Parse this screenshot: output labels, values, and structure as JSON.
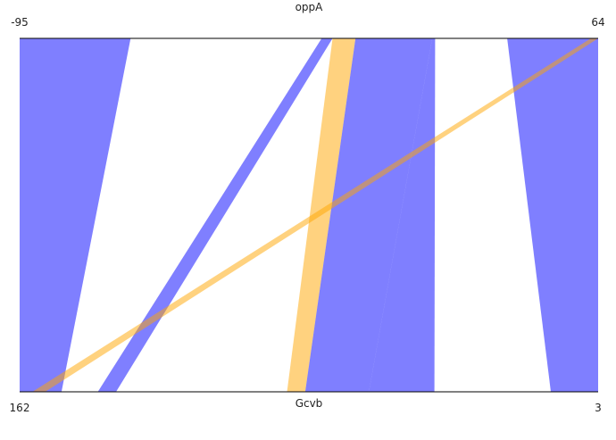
{
  "chart_data": {
    "type": "parallel-band",
    "title": "",
    "top_axis": {
      "label": "oppA",
      "min": -95,
      "max": 64,
      "min_label": "-95",
      "max_label": "64"
    },
    "bottom_axis": {
      "label": "Gcvb",
      "min": 162,
      "max": 3,
      "min_label": "162",
      "max_label": "3"
    },
    "colors": {
      "blue": "#0000ff",
      "orange": "#ffa500"
    },
    "bands": [
      {
        "color": "blue",
        "top": [
          -95,
          -64.5
        ],
        "bottom": [
          162,
          150.5
        ]
      },
      {
        "color": "blue",
        "top": [
          -12,
          -9
        ],
        "bottom": [
          140.5,
          135.5
        ]
      },
      {
        "color": "orange",
        "top": [
          -9,
          -2.7
        ],
        "bottom": [
          88.5,
          83.5
        ]
      },
      {
        "color": "blue",
        "top": [
          -2.7,
          18.4
        ],
        "bottom": [
          83.5,
          66
        ]
      },
      {
        "color": "blue",
        "top": [
          18.4,
          19.2
        ],
        "bottom": [
          66,
          48
        ]
      },
      {
        "color": "blue",
        "top": [
          39,
          64
        ],
        "bottom": [
          16,
          3
        ]
      },
      {
        "color": "orange",
        "top": [
          62,
          64
        ],
        "bottom": [
          158.5,
          155
        ]
      }
    ]
  }
}
